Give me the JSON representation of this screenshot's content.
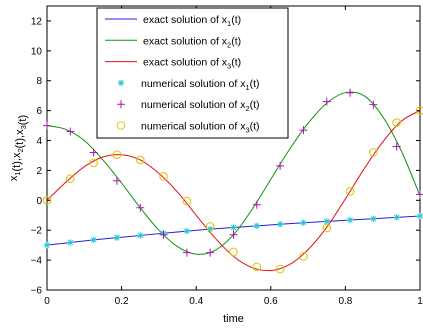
{
  "chart_data": {
    "type": "line",
    "xlabel": "time",
    "ylabel_parts": [
      {
        "base": "x",
        "sub": "1"
      },
      {
        "base": "(t),x",
        "sub": "2"
      },
      {
        "base": "(t),x",
        "sub": "3"
      },
      {
        "base": "(t)",
        "sub": ""
      }
    ],
    "xlim": [
      0,
      1
    ],
    "ylim": [
      -6,
      13
    ],
    "xticks": [
      0,
      0.2,
      0.4,
      0.6,
      0.8,
      1
    ],
    "xtick_labels": [
      "0",
      "0.2",
      "0.4",
      "0.6",
      "0.8",
      "1"
    ],
    "yticks": [
      -6,
      -4,
      -2,
      0,
      2,
      4,
      6,
      8,
      10,
      12
    ],
    "ytick_labels": [
      "−6",
      "−4",
      "−2",
      "0",
      "2",
      "4",
      "6",
      "8",
      "10",
      "12"
    ],
    "grid": false,
    "legend_position": "top-center",
    "legend": [
      {
        "kind": "line",
        "color": "#2020e0",
        "prefix": "exact solution of  x",
        "sub": "1",
        "suffix": "(t)"
      },
      {
        "kind": "line",
        "color": "#109010",
        "prefix": "exact solution of  x",
        "sub": "2",
        "suffix": "(t)"
      },
      {
        "kind": "line",
        "color": "#e01010",
        "prefix": "exact solution of  x",
        "sub": "3",
        "suffix": "(t)"
      },
      {
        "kind": "marker",
        "marker": "asterisk",
        "color": "#20c8d8",
        "prefix": "numerical solution of  x",
        "sub": "1",
        "suffix": "(t)"
      },
      {
        "kind": "marker",
        "marker": "plus",
        "color": "#b010b8",
        "prefix": "numerical solution of  x",
        "sub": "2",
        "suffix": "(t)"
      },
      {
        "kind": "marker",
        "marker": "circle",
        "color": "#e0c000",
        "prefix": "numerical solution of  x",
        "sub": "3",
        "suffix": "(t)"
      }
    ],
    "exact_series": [
      {
        "name": "exact solution of x1(t)",
        "color": "#2020e0",
        "x": [
          0,
          0.0625,
          0.125,
          0.1875,
          0.25,
          0.3125,
          0.375,
          0.4375,
          0.5,
          0.5625,
          0.625,
          0.6875,
          0.75,
          0.8125,
          0.875,
          0.9375,
          1
        ],
        "y": [
          -3.0,
          -2.82,
          -2.65,
          -2.5,
          -2.35,
          -2.2,
          -2.06,
          -1.93,
          -1.82,
          -1.71,
          -1.6,
          -1.5,
          -1.41,
          -1.32,
          -1.23,
          -1.14,
          -1.05
        ]
      },
      {
        "name": "exact solution of x2(t)",
        "color": "#109010",
        "x": [
          0,
          0.05,
          0.1,
          0.15,
          0.2,
          0.25,
          0.3,
          0.35,
          0.4,
          0.45,
          0.5,
          0.55,
          0.6,
          0.65,
          0.7,
          0.75,
          0.8,
          0.85,
          0.9,
          0.95,
          1
        ],
        "y": [
          5.0,
          4.75,
          4.0,
          2.7,
          1.15,
          -0.5,
          -2.0,
          -3.1,
          -3.6,
          -3.35,
          -2.3,
          -0.6,
          1.4,
          3.4,
          5.15,
          6.5,
          7.2,
          7.0,
          5.6,
          3.3,
          0.3
        ]
      },
      {
        "name": "exact solution of x3(t)",
        "color": "#e01010",
        "x": [
          0,
          0.05,
          0.1,
          0.15,
          0.2,
          0.25,
          0.3,
          0.35,
          0.4,
          0.45,
          0.5,
          0.55,
          0.6,
          0.65,
          0.7,
          0.75,
          0.8,
          0.85,
          0.9,
          0.95,
          1
        ],
        "y": [
          0.0,
          1.2,
          2.25,
          2.9,
          3.05,
          2.7,
          1.8,
          0.55,
          -1.0,
          -2.5,
          -3.75,
          -4.5,
          -4.7,
          -4.3,
          -3.3,
          -1.8,
          0.1,
          2.1,
          3.9,
          5.3,
          6.0
        ]
      }
    ],
    "numerical_series": [
      {
        "name": "numerical solution of x1(t)",
        "marker": "asterisk",
        "color": "#20c8d8",
        "x": [
          0,
          0.0625,
          0.125,
          0.1875,
          0.25,
          0.3125,
          0.375,
          0.4375,
          0.5,
          0.5625,
          0.625,
          0.6875,
          0.75,
          0.8125,
          0.875,
          0.9375,
          1
        ],
        "y": [
          -3.0,
          -2.82,
          -2.65,
          -2.5,
          -2.35,
          -2.2,
          -2.06,
          -1.93,
          -1.82,
          -1.71,
          -1.6,
          -1.5,
          -1.41,
          -1.32,
          -1.23,
          -1.14,
          -1.05
        ]
      },
      {
        "name": "numerical solution of x2(t)",
        "marker": "plus",
        "color": "#b010b8",
        "x": [
          0,
          0.0625,
          0.125,
          0.1875,
          0.25,
          0.3125,
          0.375,
          0.4375,
          0.5,
          0.5625,
          0.625,
          0.6875,
          0.75,
          0.8125,
          0.875,
          0.9375,
          1
        ],
        "y": [
          5.0,
          4.6,
          3.2,
          1.3,
          -0.5,
          -2.3,
          -3.5,
          -3.5,
          -2.3,
          -0.3,
          2.3,
          4.7,
          6.6,
          7.2,
          6.4,
          3.6,
          0.4
        ]
      },
      {
        "name": "numerical solution of x3(t)",
        "marker": "circle",
        "color": "#e0c000",
        "x": [
          0,
          0.0625,
          0.125,
          0.1875,
          0.25,
          0.3125,
          0.375,
          0.4375,
          0.5,
          0.5625,
          0.625,
          0.6875,
          0.75,
          0.8125,
          0.875,
          0.9375,
          1
        ],
        "y": [
          0.0,
          1.45,
          2.5,
          3.05,
          2.7,
          1.6,
          -0.05,
          -1.75,
          -3.45,
          -4.45,
          -4.6,
          -3.75,
          -1.85,
          0.6,
          3.2,
          5.2,
          6.0
        ]
      }
    ]
  }
}
